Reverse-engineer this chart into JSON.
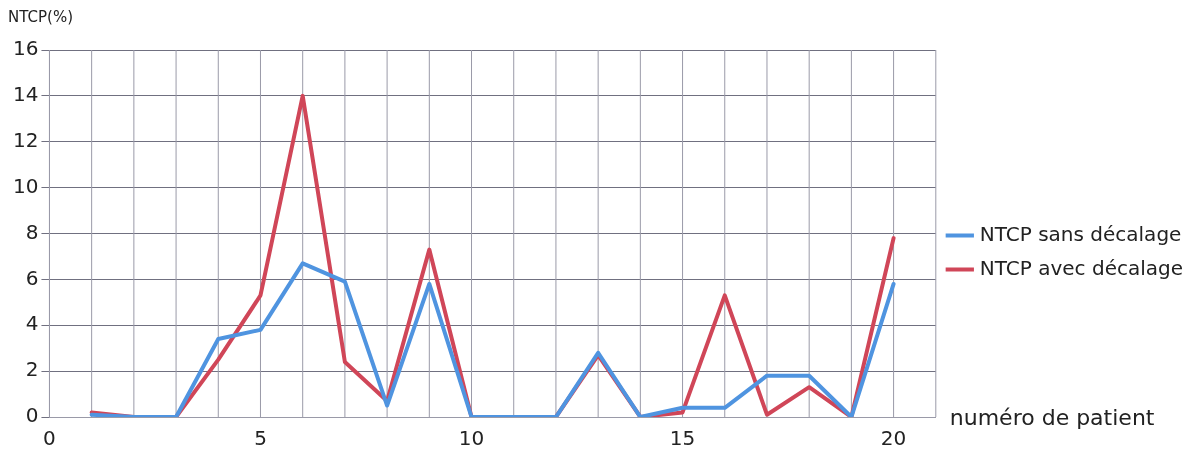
{
  "chart_data": {
    "type": "line",
    "ylabel": "NTCP(%)",
    "xlabel": "numéro de patient",
    "x": [
      1,
      2,
      3,
      4,
      5,
      6,
      7,
      8,
      9,
      10,
      11,
      12,
      13,
      14,
      15,
      16,
      17,
      18,
      19,
      20
    ],
    "series": [
      {
        "name": "NTCP sans décalage",
        "color": "#4f94e0",
        "values": [
          0.1,
          0,
          0,
          3.4,
          3.8,
          6.7,
          5.9,
          0.5,
          5.8,
          0,
          0,
          0,
          2.8,
          0,
          0.4,
          0.4,
          1.8,
          1.8,
          0,
          5.8
        ]
      },
      {
        "name": "NTCP avec décalage",
        "color": "#d04658",
        "values": [
          0.2,
          0,
          0,
          2.5,
          5.3,
          14,
          2.4,
          0.7,
          7.3,
          0,
          0,
          0,
          2.7,
          0,
          0.2,
          5.3,
          0.1,
          1.3,
          0,
          7.8
        ]
      }
    ],
    "xlim": [
      0,
      21
    ],
    "xticks": [
      0,
      5,
      10,
      15,
      20
    ],
    "ylim": [
      0,
      16
    ],
    "yticks": [
      0,
      2,
      4,
      6,
      8,
      10,
      12,
      14,
      16
    ],
    "grid": true,
    "legend": "right",
    "marker": "none",
    "line_style": "solid"
  }
}
